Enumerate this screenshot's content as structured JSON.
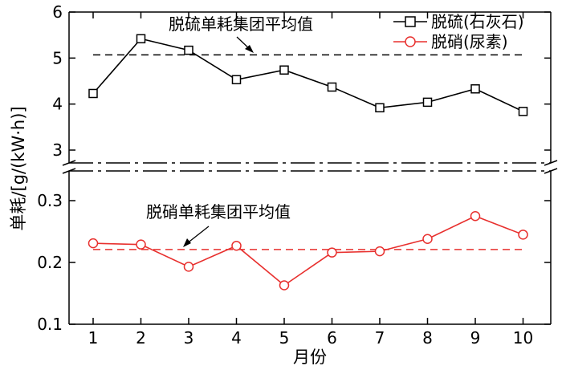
{
  "chart_data": {
    "type": "line",
    "xlabel": "月份",
    "ylabel": "单耗/[g/(kW·h)]",
    "categories": [
      1,
      2,
      3,
      4,
      5,
      6,
      7,
      8,
      9,
      10
    ],
    "x_ticks": [
      "1",
      "2",
      "3",
      "4",
      "5",
      "6",
      "7",
      "8",
      "9",
      "10"
    ],
    "axis_break": true,
    "upper_panel": {
      "ylim": [
        2.7,
        6
      ],
      "yticks": [
        "3",
        "4",
        "5",
        "6"
      ],
      "series": [
        {
          "name": "脱硫(石灰石)",
          "marker": "square",
          "color": "#000000",
          "values": [
            4.23,
            5.42,
            5.17,
            4.53,
            4.74,
            4.37,
            3.92,
            4.04,
            4.33,
            3.84
          ]
        }
      ],
      "reference_line": {
        "value": 5.07,
        "label": "脱硫单耗集团平均值",
        "color": "#000000",
        "style": "dashed"
      }
    },
    "lower_panel": {
      "ylim": [
        0.1,
        0.35
      ],
      "yticks": [
        "0.1",
        "0.2",
        "0.3"
      ],
      "series": [
        {
          "name": "脱硝(尿素)",
          "marker": "circle",
          "color": "#e8302e",
          "values": [
            0.231,
            0.229,
            0.193,
            0.227,
            0.163,
            0.216,
            0.218,
            0.238,
            0.275,
            0.245
          ]
        }
      ],
      "reference_line": {
        "value": 0.221,
        "label": "脱硝单耗集团平均值",
        "color": "#e8302e",
        "style": "dashed"
      }
    },
    "legend": {
      "placement": "top-right",
      "entries": [
        "脱硫(石灰石)",
        "脱硝(尿素)"
      ]
    }
  }
}
